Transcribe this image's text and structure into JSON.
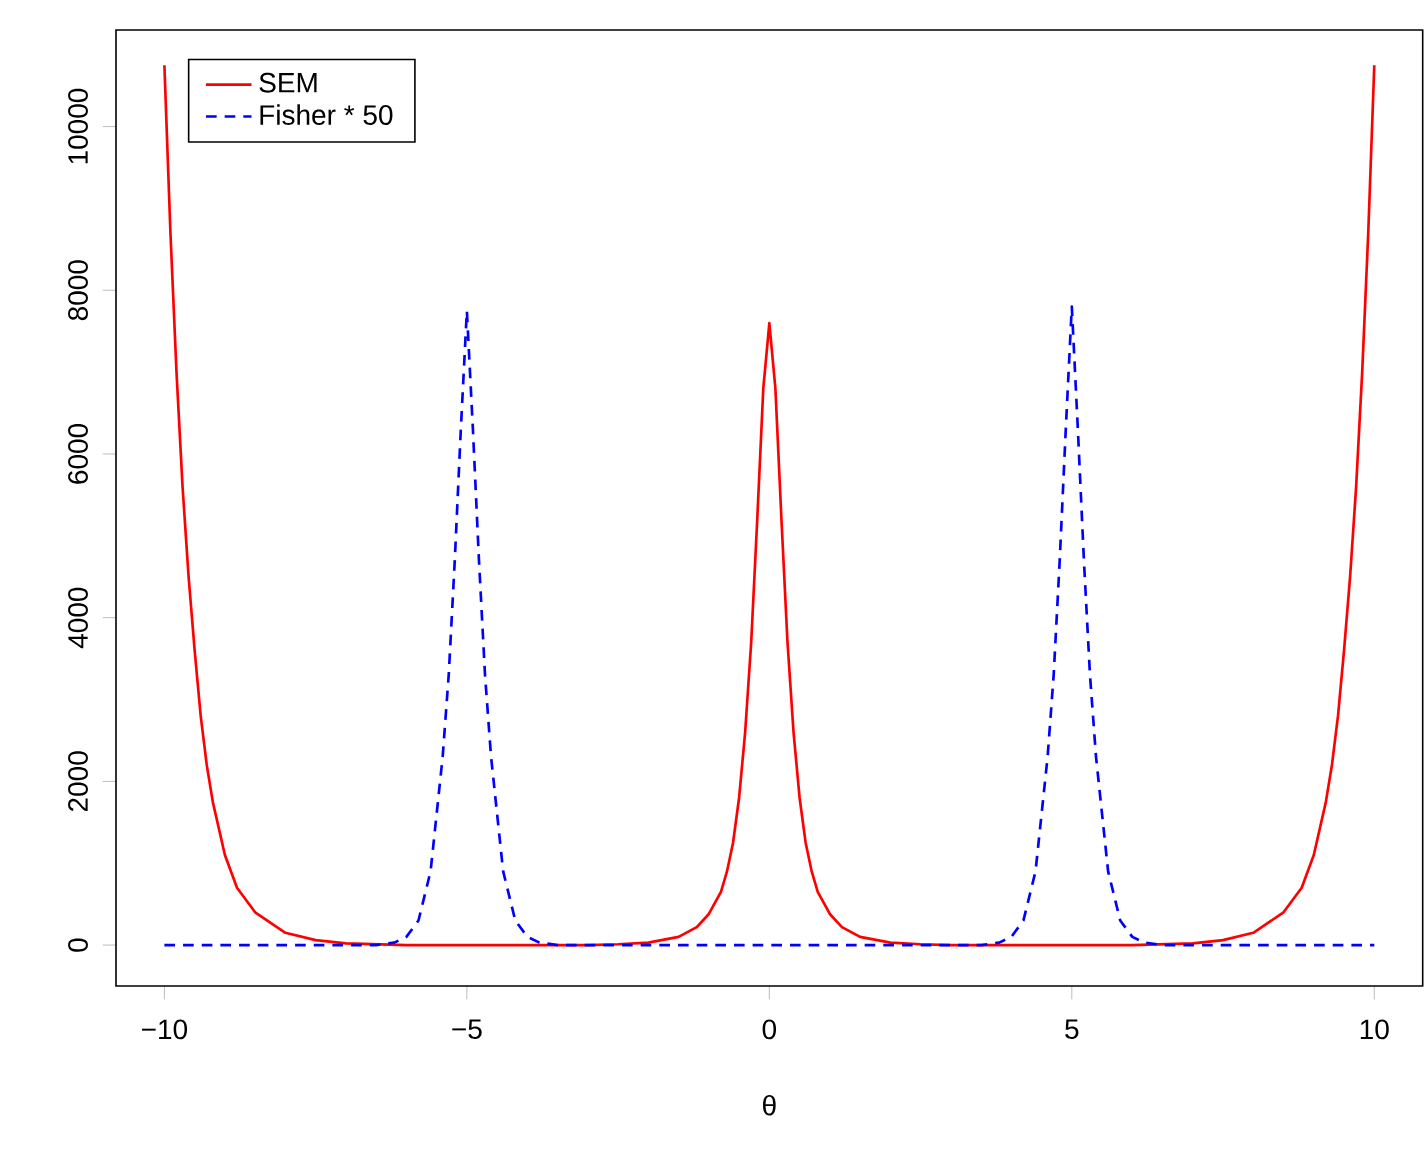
{
  "chart_data": {
    "type": "line",
    "xlabel": "θ",
    "xlim": [
      -10.8,
      10.8
    ],
    "ylim": [
      -500,
      11180
    ],
    "xticks": [
      {
        "value": -10,
        "label": "−10"
      },
      {
        "value": -5,
        "label": "−5"
      },
      0,
      5,
      10
    ],
    "yticks": [
      0,
      2000,
      4000,
      6000,
      8000,
      10000
    ],
    "grid": false,
    "legend": "top left",
    "marker": "none",
    "series": [
      {
        "name": "SEM",
        "color": "#ff0000",
        "line_style": "solid",
        "x": [
          -10,
          -9.9,
          -9.8,
          -9.7,
          -9.6,
          -9.5,
          -9.4,
          -9.3,
          -9.2,
          -9.0,
          -8.8,
          -8.5,
          -8.0,
          -7.5,
          -7,
          -6,
          -5,
          -4,
          -3,
          -2.5,
          -2,
          -1.5,
          -1.2,
          -1,
          -0.8,
          -0.7,
          -0.6,
          -0.5,
          -0.4,
          -0.3,
          -0.2,
          -0.1,
          0,
          0.1,
          0.2,
          0.3,
          0.4,
          0.5,
          0.6,
          0.7,
          0.8,
          1,
          1.2,
          1.5,
          2,
          2.5,
          3,
          4,
          5,
          6,
          7,
          7.5,
          8.0,
          8.5,
          8.8,
          9.0,
          9.2,
          9.3,
          9.4,
          9.5,
          9.6,
          9.7,
          9.8,
          9.9,
          10
        ],
        "values": [
          10750,
          8700,
          7000,
          5600,
          4500,
          3600,
          2800,
          2200,
          1750,
          1100,
          700,
          400,
          150,
          60,
          20,
          0,
          0,
          0,
          0,
          10,
          30,
          100,
          220,
          380,
          650,
          900,
          1250,
          1800,
          2600,
          3700,
          5200,
          6800,
          7600,
          6800,
          5200,
          3700,
          2600,
          1800,
          1250,
          900,
          650,
          380,
          220,
          100,
          30,
          10,
          0,
          0,
          0,
          0,
          20,
          60,
          150,
          400,
          700,
          1100,
          1750,
          2200,
          2800,
          3600,
          4500,
          5600,
          7000,
          8700,
          10750
        ]
      },
      {
        "name": "Fisher * 50",
        "color": "#0000ff",
        "line_style": "dashed",
        "x": [
          -10,
          -7,
          -6.5,
          -6.2,
          -6,
          -5.8,
          -5.6,
          -5.4,
          -5.3,
          -5.2,
          -5.1,
          -5,
          -4.9,
          -4.8,
          -4.7,
          -4.6,
          -4.4,
          -4.2,
          -4,
          -3.8,
          -3.5,
          -3,
          3,
          3.5,
          3.8,
          4,
          4.2,
          4.4,
          4.6,
          4.7,
          4.8,
          4.9,
          5,
          5.1,
          5.2,
          5.3,
          5.4,
          5.6,
          5.8,
          6,
          6.2,
          6.5,
          7,
          10
        ],
        "values": [
          0,
          0,
          0,
          30,
          100,
          300,
          900,
          2300,
          3300,
          4700,
          6300,
          7750,
          6300,
          4700,
          3300,
          2300,
          900,
          300,
          100,
          30,
          0,
          0,
          0,
          0,
          30,
          100,
          300,
          900,
          2300,
          3300,
          4700,
          6300,
          7800,
          6300,
          4700,
          3300,
          2300,
          900,
          300,
          100,
          30,
          0,
          0,
          0
        ]
      }
    ]
  }
}
